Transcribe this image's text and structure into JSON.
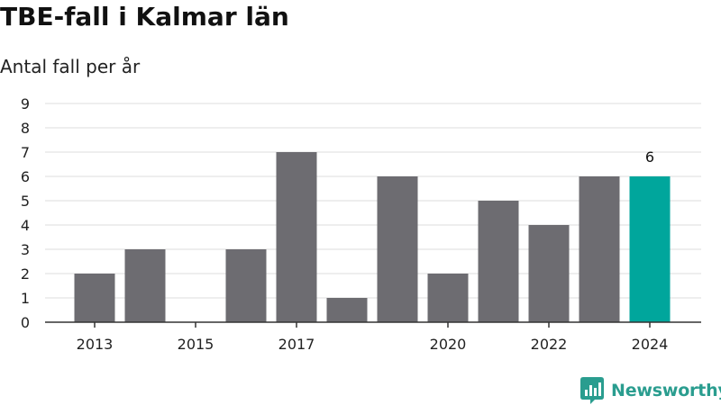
{
  "title": "TBE-fall i Kalmar län",
  "subtitle": "Antal fall per år",
  "brand": {
    "name": "Newsworthy",
    "color": "#2a9d8f",
    "icon": "newsworthy-logo-icon"
  },
  "colors": {
    "bar": "#6d6c71",
    "highlight": "#00a69c",
    "grid": "#dcdcdc",
    "axis": "#333333"
  },
  "chart_data": {
    "type": "bar",
    "title": "TBE-fall i Kalmar län",
    "subtitle": "Antal fall per år",
    "categories": [
      "2013",
      "2014",
      "2015",
      "2016",
      "2017",
      "2018",
      "2019",
      "2020",
      "2021",
      "2022",
      "2023",
      "2024"
    ],
    "values": [
      2,
      3,
      0,
      3,
      7,
      1,
      6,
      2,
      5,
      4,
      6,
      6
    ],
    "x_tick_labels": [
      "2013",
      "2015",
      "2017",
      "2020",
      "2022",
      "2024"
    ],
    "y_ticks": [
      0,
      1,
      2,
      3,
      4,
      5,
      6,
      7,
      8,
      9
    ],
    "ylim": [
      0,
      9
    ],
    "highlight_category": "2024",
    "data_labels": [
      {
        "category": "2024",
        "value": "6"
      }
    ],
    "grid": true,
    "legend": "none"
  }
}
